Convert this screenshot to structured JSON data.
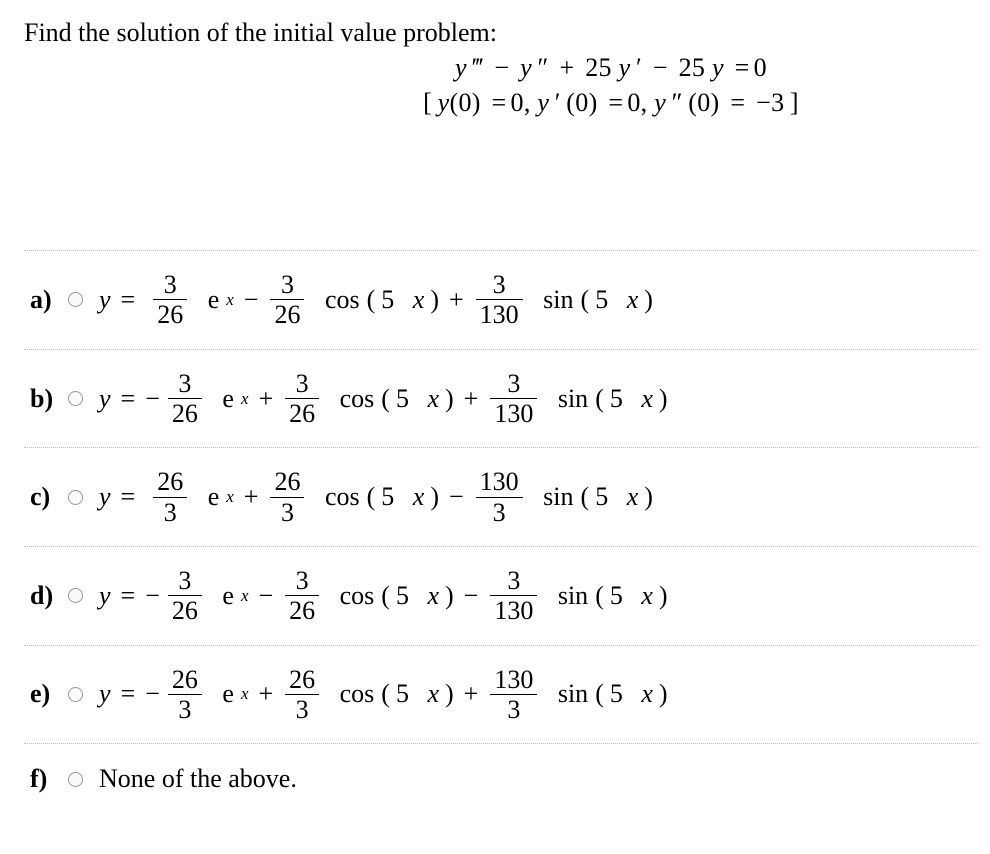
{
  "prompt": "Find the solution of the initial value problem:",
  "ode_line1_parts": {
    "y": "y",
    "t": "‴",
    "m1": "−",
    "y2": "y",
    "d": "″",
    "p1": "+",
    "c25a": "25",
    "y3": "y",
    "pr": "′",
    "m2": "−",
    "c25b": "25",
    "y4": "y",
    "eq": "=",
    "z": "0"
  },
  "ode_line2_parts": {
    "lb": "[",
    "y": "y",
    "lp1": "(",
    "z1": "0",
    "rp1": ")",
    "eq1": "=",
    "v1": "0",
    "c1": ",  ",
    "y2": "y",
    "pr": "′",
    "lp2": "(",
    "z2": "0",
    "rp2": ")",
    "eq2": "=",
    "v2": "0",
    "c2": ",  ",
    "y3": "y",
    "dp": "″",
    "lp3": "(",
    "z3": "0",
    "rp3": ")",
    "eq3": "=",
    "v3": "−3",
    "rb": "]"
  },
  "answers": {
    "a": {
      "label": "a)",
      "sign1": "",
      "n1": "3",
      "d1": "26",
      "op1": "−",
      "n2": "3",
      "d2": "26",
      "op2": "+",
      "n3": "3",
      "d3": "130"
    },
    "b": {
      "label": "b)",
      "sign1": "−",
      "n1": "3",
      "d1": "26",
      "op1": "+",
      "n2": "3",
      "d2": "26",
      "op2": "+",
      "n3": "3",
      "d3": "130"
    },
    "c": {
      "label": "c)",
      "sign1": "",
      "n1": "26",
      "d1": "3",
      "op1": "+",
      "n2": "26",
      "d2": "3",
      "op2": "−",
      "n3": "130",
      "d3": "3"
    },
    "d": {
      "label": "d)",
      "sign1": "−",
      "n1": "3",
      "d1": "26",
      "op1": "−",
      "n2": "3",
      "d2": "26",
      "op2": "−",
      "n3": "3",
      "d3": "130"
    },
    "e": {
      "label": "e)",
      "sign1": "−",
      "n1": "26",
      "d1": "3",
      "op1": "+",
      "n2": "26",
      "d2": "3",
      "op2": "+",
      "n3": "130",
      "d3": "3"
    },
    "f": {
      "label": "f)",
      "text": "None of the above."
    }
  },
  "sym": {
    "yeq": "y",
    "eq": "=",
    "e": "e",
    "x": "x",
    "cos": "cos",
    "sin": "sin",
    "arg_open": "(",
    "arg_close": ")",
    "five": "5",
    "xvar": "x"
  }
}
